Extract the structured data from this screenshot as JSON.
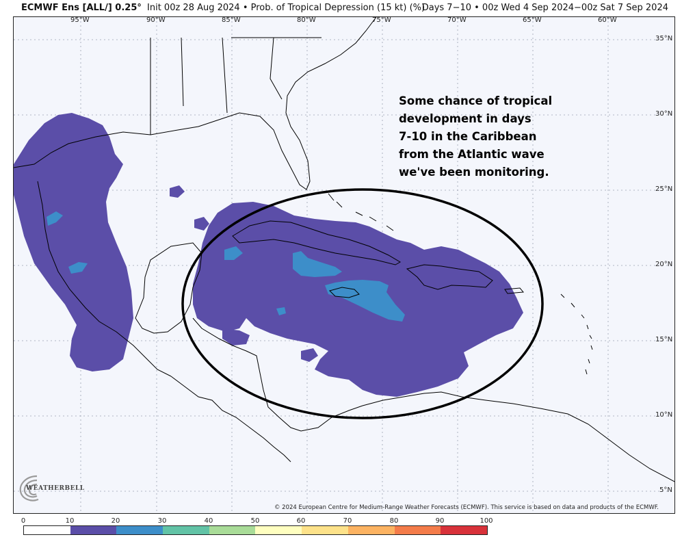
{
  "header": {
    "model": "ECMWF Ens [ALL/] 0.25°",
    "product": "Init 00z 28 Aug 2024 • Prob. of Tropical Depression (15 kt) (%)",
    "valid": "Days 7−10 • 00z Wed 4 Sep 2024−00z Sat 7 Sep 2024"
  },
  "map": {
    "lon_labels": [
      "95°W",
      "90°W",
      "85°W",
      "80°W",
      "75°W",
      "70°W",
      "65°W",
      "60°W"
    ],
    "lat_labels": [
      "35°N",
      "30°N",
      "25°N",
      "20°N",
      "15°N",
      "10°N",
      "5°N"
    ],
    "annotation": "Some chance of tropical\ndevelopment in days\n7-10 in the Caribbean\nfrom the Atlantic wave\nwe've been monitoring.",
    "copyright": "© 2024 European Centre for Medium-Range Weather Forecasts (ECMWF). This service is based on data and products of the ECMWF.",
    "logo_text": "WEATHERBELL",
    "logo_icon": "swirl-icon",
    "probability_colors": {
      "10-20": "#5b4ea8",
      "20-30": "#3d8ec9",
      "ocean": "#f4f6fc",
      "grid": "#9aa0b0"
    }
  },
  "legend": {
    "ticks": [
      "0",
      "10",
      "20",
      "30",
      "40",
      "50",
      "60",
      "70",
      "80",
      "90",
      "100"
    ],
    "colors": [
      "#ffffff",
      "#5b4ea8",
      "#3d8ec9",
      "#62c3a6",
      "#a9dc98",
      "#ffffc0",
      "#fde28a",
      "#fcb362",
      "#f47c4a",
      "#d8323a",
      "#9e0e45"
    ]
  }
}
